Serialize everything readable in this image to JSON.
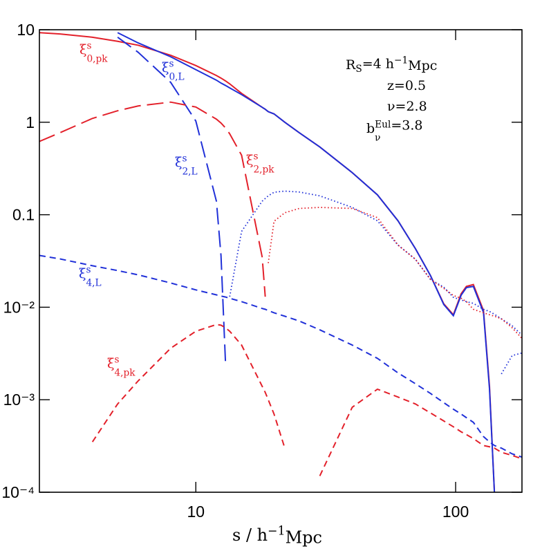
{
  "chart_data": {
    "type": "line",
    "xscale": "log",
    "yscale": "log",
    "xlim": [
      2.5,
      180
    ],
    "ylim": [
      0.0001,
      10
    ],
    "xticks": [
      10,
      100
    ],
    "yticks": [
      10,
      1,
      0.1,
      {
        "value": 0.01,
        "label": "10⁻²"
      },
      {
        "value": 0.001,
        "label": "10⁻³"
      },
      {
        "value": 0.0001,
        "label": "10⁻⁴"
      }
    ],
    "xlabel": [
      {
        "text": "s / h"
      },
      {
        "sup": "−1"
      },
      {
        "text": "Mpc"
      }
    ],
    "negative_style": "dotted",
    "annotations": [
      [
        {
          "text": "R"
        },
        {
          "sub": "S"
        },
        {
          "text": "=4 h"
        },
        {
          "sup": "−1"
        },
        {
          "text": "Mpc"
        }
      ],
      [
        {
          "text": "z=0.5"
        }
      ],
      [
        {
          "text": "ν=2.8"
        }
      ],
      [
        {
          "text": "b"
        },
        {
          "sup": "Eul",
          "sub": "ν"
        },
        {
          "text": "=3.8"
        }
      ]
    ],
    "x": [
      2.5,
      3,
      4,
      5,
      6,
      8,
      10,
      12,
      12.5,
      13,
      13.5,
      15,
      18,
      18.5,
      19,
      20,
      22,
      25,
      30,
      40,
      50,
      60,
      70,
      80,
      90,
      98,
      105,
      110,
      117,
      128,
      135,
      141,
      150,
      165,
      180
    ],
    "series": [
      {
        "label": [
          {
            "text": "ξ"
          },
          {
            "sup": "s",
            "sub": "0,pk"
          }
        ],
        "color": "#e3202a",
        "dash": "solid",
        "values": [
          9.3,
          9.0,
          8.3,
          7.5,
          6.8,
          5.3,
          4.1,
          3.2,
          3.0,
          2.8,
          2.6,
          2.05,
          1.45,
          1.38,
          1.3,
          1.23,
          1.0,
          0.77,
          0.54,
          0.285,
          0.164,
          0.086,
          0.043,
          0.022,
          0.0109,
          0.0083,
          0.014,
          0.0168,
          0.0176,
          0.0092,
          0.0014,
          0.0001,
          null,
          null,
          null
        ]
      },
      {
        "label": [
          {
            "text": "ξ"
          },
          {
            "sup": "s",
            "sub": "0,L"
          }
        ],
        "color": "#2030d8",
        "dash": "solid",
        "values": [
          null,
          null,
          null,
          9.3,
          7.2,
          5.1,
          3.7,
          2.85,
          2.65,
          2.5,
          2.35,
          1.99,
          1.45,
          1.38,
          1.3,
          1.23,
          1.0,
          0.77,
          0.54,
          0.285,
          0.164,
          0.086,
          0.043,
          0.022,
          0.0107,
          0.0081,
          0.0135,
          0.0163,
          0.0168,
          0.0088,
          0.0013,
          0.0001,
          -0.0019,
          -0.003,
          -0.0032
        ]
      },
      {
        "label": [
          {
            "text": "ξ"
          },
          {
            "sup": "s",
            "sub": "2,L"
          }
        ],
        "color": "#2030d8",
        "dash": "long",
        "values": [
          null,
          null,
          null,
          8.3,
          5.7,
          2.7,
          1.03,
          0.14,
          0.036,
          0.0026,
          -0.013,
          -0.066,
          -0.14,
          -0.15,
          -0.16,
          -0.175,
          -0.18,
          -0.176,
          -0.16,
          -0.12,
          -0.086,
          -0.047,
          -0.033,
          -0.02,
          -0.0165,
          -0.0128,
          -0.012,
          -0.0115,
          -0.011,
          -0.0095,
          -0.009,
          -0.0084,
          -0.0075,
          -0.0063,
          -0.005
        ]
      },
      {
        "label": [
          {
            "text": "ξ"
          },
          {
            "sup": "s",
            "sub": "2,pk"
          }
        ],
        "color": "#e3202a",
        "dash": "long",
        "values": [
          0.62,
          0.77,
          1.1,
          1.33,
          1.5,
          1.65,
          1.46,
          1.08,
          0.98,
          0.87,
          0.75,
          0.44,
          0.035,
          0.013,
          -0.03,
          -0.085,
          -0.105,
          -0.117,
          -0.12,
          -0.117,
          -0.093,
          -0.047,
          -0.033,
          -0.02,
          -0.016,
          -0.0134,
          -0.0125,
          -0.0115,
          -0.0095,
          -0.0087,
          -0.0083,
          -0.008,
          -0.0075,
          -0.006,
          -0.0046
        ]
      },
      {
        "label": [
          {
            "text": "ξ"
          },
          {
            "sup": "s",
            "sub": "4,L"
          }
        ],
        "color": "#2030d8",
        "dash": "short",
        "values": [
          0.0363,
          0.0333,
          0.0281,
          0.0249,
          0.0224,
          0.0183,
          0.0154,
          0.0136,
          0.0132,
          0.0129,
          0.0125,
          0.0115,
          0.0097,
          0.0095,
          0.0092,
          0.0087,
          0.008,
          0.0071,
          0.0057,
          0.0039,
          0.0028,
          0.00195,
          0.00149,
          0.00117,
          0.00093,
          0.00079,
          0.0007,
          0.00064,
          0.00057,
          0.0004,
          0.00035,
          0.00032,
          0.0003,
          0.00026,
          0.00024
        ]
      },
      {
        "label": [
          {
            "text": "ξ"
          },
          {
            "sup": "s",
            "sub": "4,pk"
          }
        ],
        "color": "#e3202a",
        "dash": "short",
        "values": [
          null,
          null,
          0.00035,
          0.0009,
          0.0016,
          0.0036,
          0.0055,
          0.0065,
          0.0064,
          0.006,
          0.0055,
          0.0039,
          0.0014,
          0.0012,
          0.001,
          0.0007,
          0.0003,
          null,
          0.00015,
          0.00083,
          0.0013,
          0.00107,
          0.0009,
          0.00072,
          0.00059,
          0.00051,
          0.00045,
          0.00042,
          0.00038,
          0.00032,
          0.00031,
          0.0003,
          0.00027,
          0.00025,
          0.00023
        ]
      }
    ]
  }
}
